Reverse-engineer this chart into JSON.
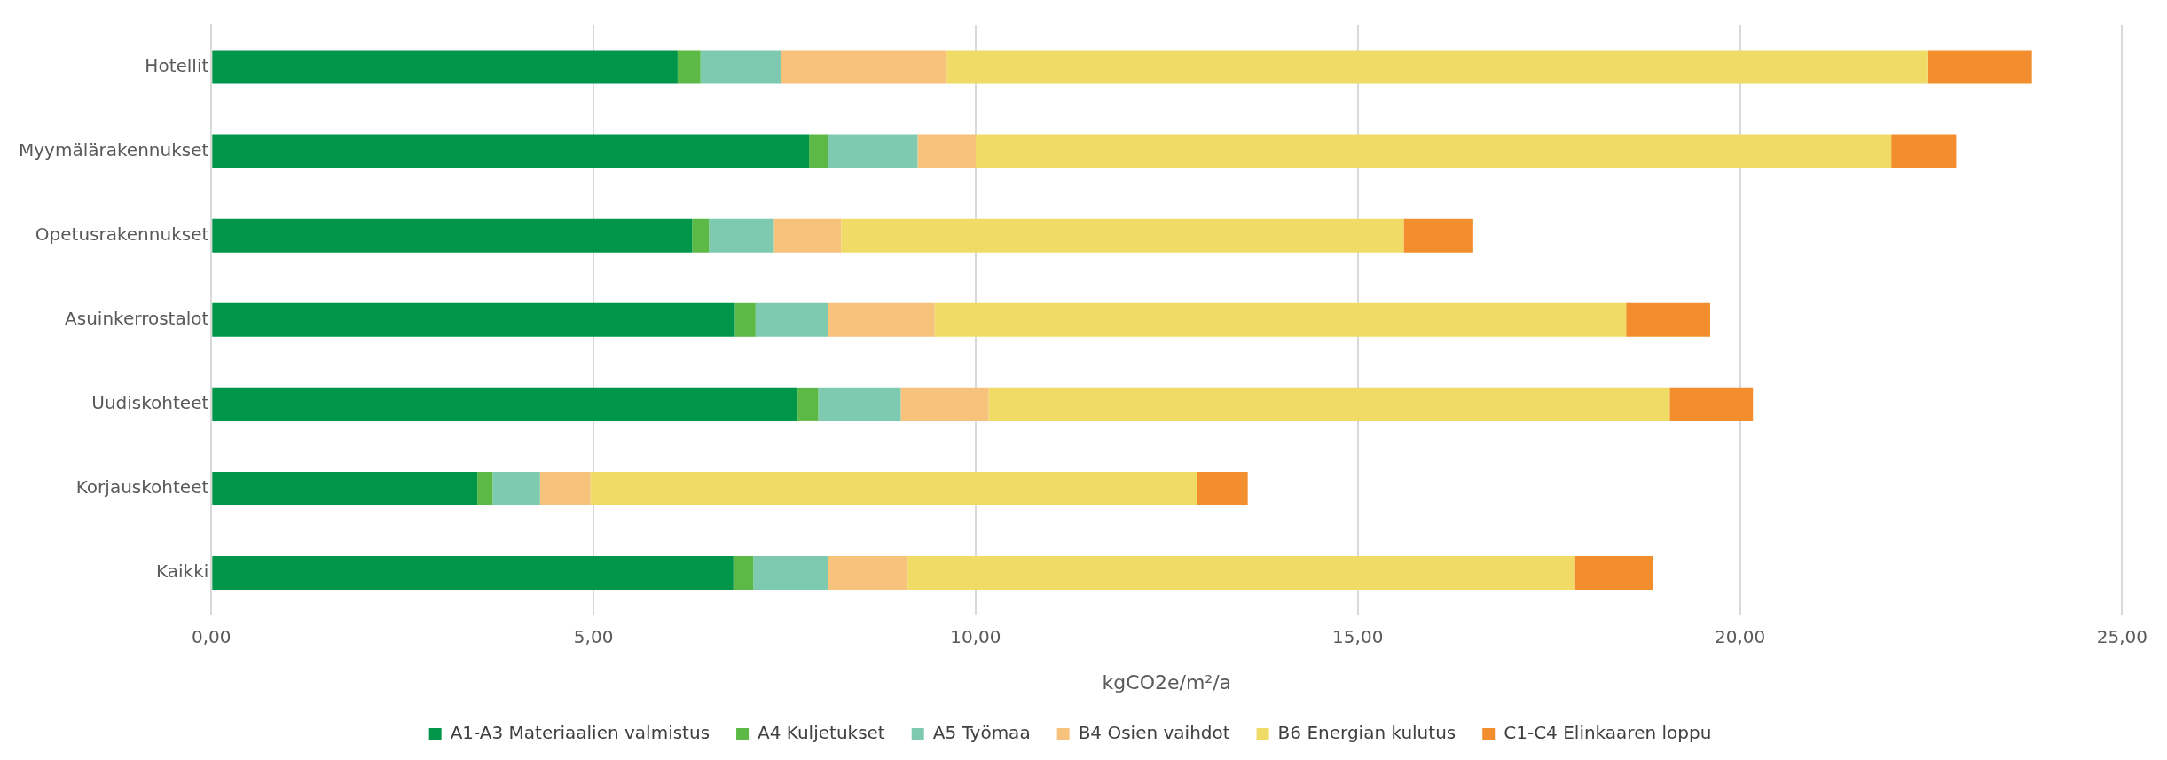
{
  "chart_data": {
    "type": "bar",
    "orientation": "horizontal",
    "stacked": true,
    "xlabel": "kgCO2e/m²/a",
    "categories": [
      "Hotellit",
      "Myymälärakennukset",
      "Opetusrakennukset",
      "Asuinkerrostalot",
      "Uudiskohteet",
      "Korjauskohteet",
      "Kaikki"
    ],
    "series": [
      {
        "name": "A1-A3 Materiaalien valmistus",
        "color": "#00964a",
        "values": [
          6.1,
          7.82,
          6.29,
          6.85,
          7.67,
          3.48,
          6.83
        ]
      },
      {
        "name": "A4 Kuljetukset",
        "color": "#5cb946",
        "values": [
          0.3,
          0.25,
          0.22,
          0.27,
          0.27,
          0.2,
          0.26
        ]
      },
      {
        "name": "A5 Työmaa",
        "color": "#7ecab0",
        "values": [
          1.05,
          1.17,
          0.85,
          0.95,
          1.08,
          0.62,
          0.98
        ]
      },
      {
        "name": "B4 Osien vaihdot",
        "color": "#f7c27c",
        "values": [
          2.17,
          0.76,
          0.88,
          1.39,
          1.15,
          0.66,
          1.04
        ]
      },
      {
        "name": "B6 Energian kulutus",
        "color": "#f0db66",
        "values": [
          12.83,
          11.98,
          7.36,
          9.05,
          8.91,
          7.94,
          8.73
        ]
      },
      {
        "name": "C1-C4 Elinkaaren loppu",
        "color": "#f38e2e",
        "values": [
          1.37,
          0.85,
          0.91,
          1.1,
          1.09,
          0.66,
          1.02
        ]
      }
    ],
    "xlim": [
      0,
      25
    ],
    "xticks": [
      {
        "value": 0,
        "label": "0,00"
      },
      {
        "value": 5,
        "label": "5,00"
      },
      {
        "value": 10,
        "label": "10,00"
      },
      {
        "value": 15,
        "label": "15,00"
      },
      {
        "value": 20,
        "label": "20,00"
      },
      {
        "value": 25,
        "label": "25,00"
      }
    ],
    "grid": "x",
    "legend": "bottom"
  }
}
